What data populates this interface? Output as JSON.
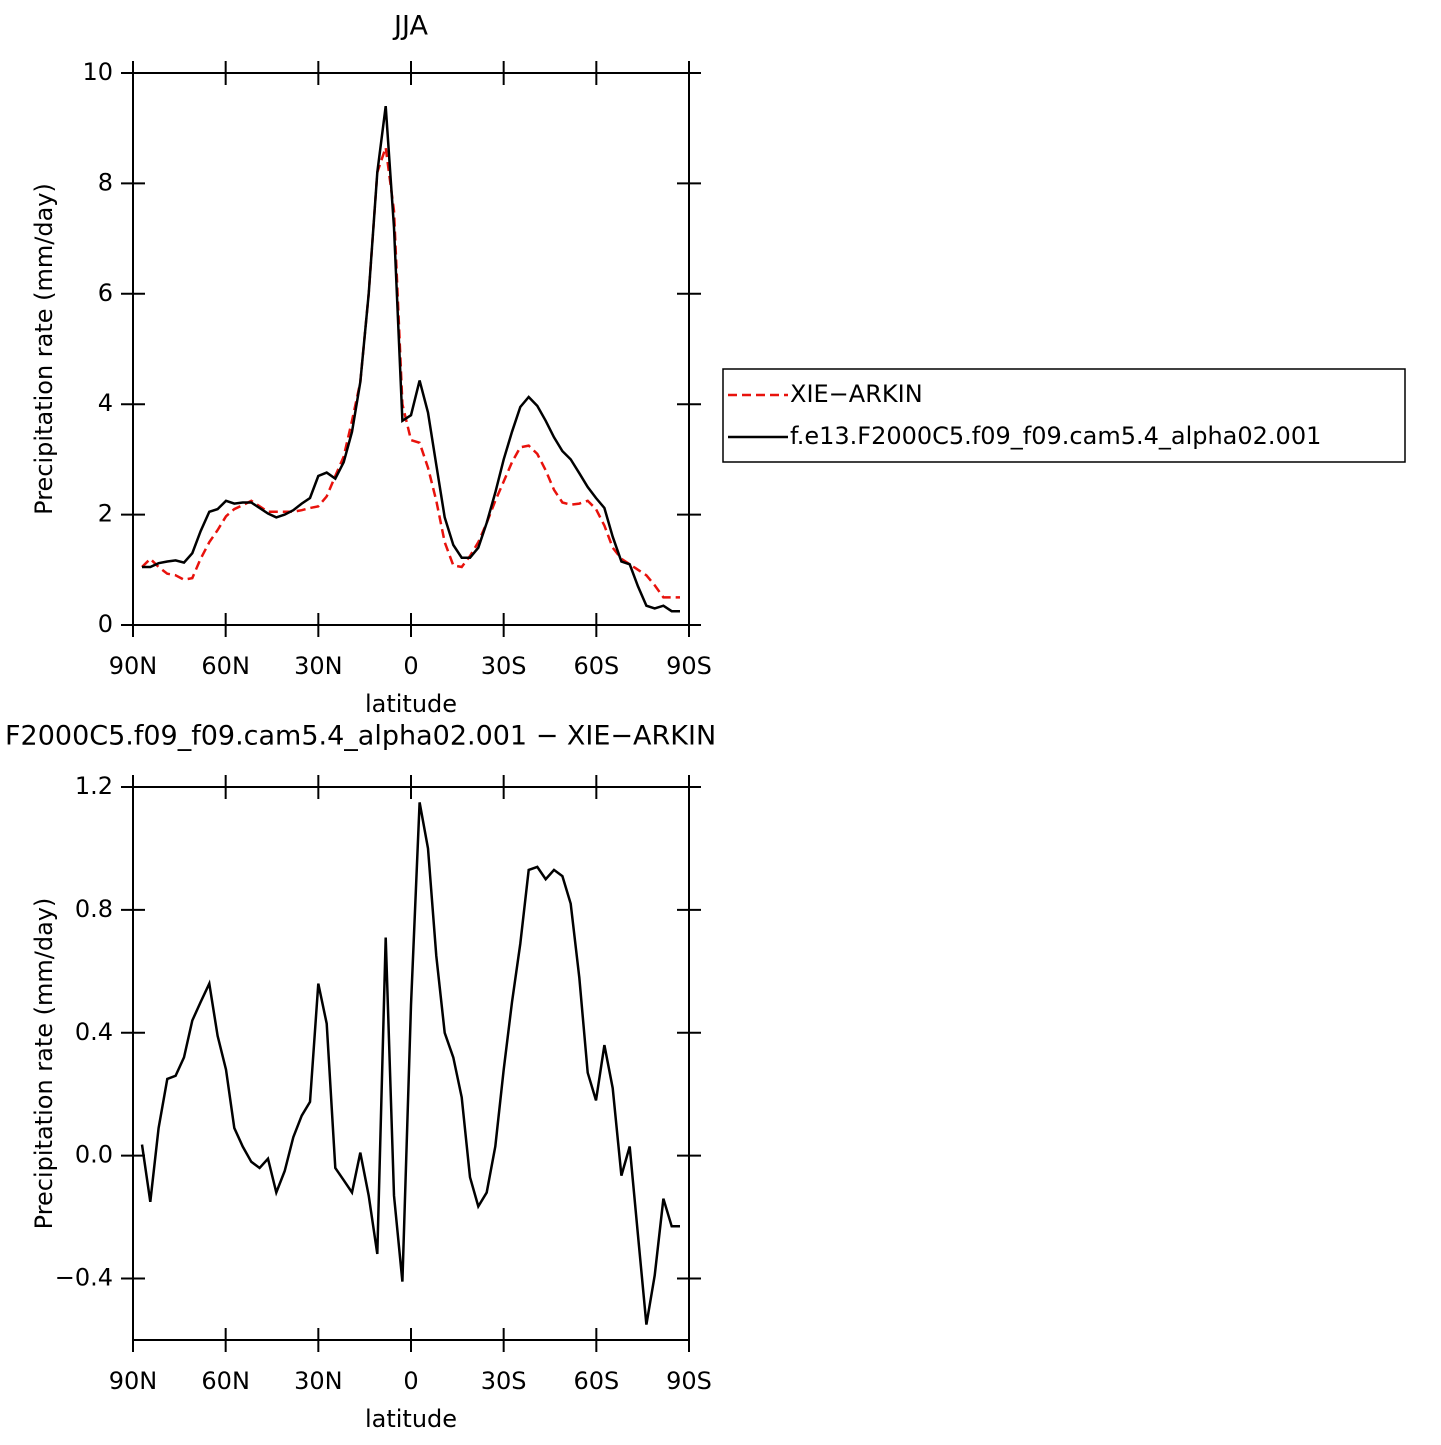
{
  "chart_data": [
    {
      "type": "line",
      "title": "JJA",
      "xlabel": "latitude",
      "ylabel": "Precipitation rate (mm/day)",
      "x": [
        87.1,
        84.4,
        81.7,
        78.9,
        76.2,
        73.5,
        70.8,
        68.1,
        65.3,
        62.6,
        59.9,
        57.2,
        54.5,
        51.7,
        49.0,
        46.3,
        43.6,
        40.9,
        38.1,
        35.4,
        32.7,
        30.0,
        27.3,
        24.5,
        21.8,
        19.1,
        16.4,
        13.7,
        10.9,
        8.2,
        5.5,
        2.8,
        0.0,
        -2.8,
        -5.5,
        -8.2,
        -10.9,
        -13.7,
        -16.4,
        -19.1,
        -21.8,
        -24.5,
        -27.3,
        -30.0,
        -32.7,
        -35.4,
        -38.1,
        -40.9,
        -43.6,
        -46.3,
        -49.0,
        -51.7,
        -54.5,
        -57.2,
        -59.9,
        -62.6,
        -65.3,
        -68.1,
        -70.8,
        -73.5,
        -76.2,
        -78.9,
        -81.7,
        -84.4,
        -87.1
      ],
      "series": [
        {
          "name": "XIE−ARKIN",
          "color": "#e8120c",
          "style": "dashed",
          "values": [
            1.05,
            1.2,
            1.05,
            0.93,
            0.9,
            0.82,
            0.85,
            1.2,
            1.5,
            1.72,
            1.97,
            2.1,
            2.17,
            2.25,
            2.15,
            2.05,
            2.05,
            2.05,
            2.05,
            2.08,
            2.12,
            2.15,
            2.33,
            2.7,
            3.05,
            3.7,
            4.4,
            6.0,
            8.2,
            8.65,
            7.5,
            4.0,
            3.35,
            3.3,
            2.85,
            2.25,
            1.5,
            1.08,
            1.05,
            1.25,
            1.5,
            1.85,
            2.25,
            2.6,
            2.95,
            3.22,
            3.25,
            3.1,
            2.8,
            2.45,
            2.22,
            2.18,
            2.2,
            2.25,
            2.1,
            1.8,
            1.4,
            1.2,
            1.1,
            1.0,
            0.9,
            0.72,
            0.5,
            0.5,
            0.5
          ]
        },
        {
          "name": "f.e13.F2000C5.f09_f09.cam5.4_alpha02.001",
          "color": "#000000",
          "style": "solid",
          "values": [
            1.05,
            1.05,
            1.12,
            1.15,
            1.17,
            1.13,
            1.3,
            1.7,
            2.05,
            2.1,
            2.25,
            2.2,
            2.22,
            2.22,
            2.12,
            2.02,
            1.95,
            2.0,
            2.08,
            2.2,
            2.3,
            2.7,
            2.76,
            2.65,
            2.95,
            3.5,
            4.4,
            6.0,
            8.2,
            9.4,
            7.2,
            3.7,
            3.8,
            4.43,
            3.85,
            2.9,
            1.95,
            1.45,
            1.22,
            1.22,
            1.4,
            1.85,
            2.4,
            3.0,
            3.5,
            3.95,
            4.13,
            3.97,
            3.7,
            3.4,
            3.15,
            3.0,
            2.75,
            2.5,
            2.3,
            2.12,
            1.6,
            1.15,
            1.1,
            0.7,
            0.35,
            0.3,
            0.35,
            0.25,
            0.25
          ]
        }
      ],
      "xlim": [
        90,
        -90
      ],
      "ylim": [
        0,
        10
      ],
      "xticks": [
        {
          "value": 90,
          "label": "90N"
        },
        {
          "value": 60,
          "label": "60N"
        },
        {
          "value": 30,
          "label": "30N"
        },
        0,
        {
          "value": -30,
          "label": "30S"
        },
        {
          "value": -60,
          "label": "60S"
        },
        {
          "value": -90,
          "label": "90S"
        }
      ],
      "yticks": [
        0,
        2,
        4,
        6,
        8,
        10
      ],
      "legend": "right"
    },
    {
      "type": "line",
      "title": "F2000C5.f09_f09.cam5.4_alpha02.001  −  XIE−ARKIN",
      "xlabel": "latitude",
      "ylabel": "Precipitation rate (mm/day)",
      "x": [
        87.1,
        84.4,
        81.7,
        78.9,
        76.2,
        73.5,
        70.8,
        68.1,
        65.3,
        62.6,
        59.9,
        57.2,
        54.5,
        51.7,
        49.0,
        46.3,
        43.6,
        40.9,
        38.1,
        35.4,
        32.7,
        30.0,
        27.3,
        24.5,
        21.8,
        19.1,
        16.4,
        13.7,
        10.9,
        8.2,
        5.5,
        2.8,
        0.0,
        -2.8,
        -5.5,
        -8.2,
        -10.9,
        -13.7,
        -16.4,
        -19.1,
        -21.8,
        -24.5,
        -27.3,
        -30.0,
        -32.7,
        -35.4,
        -38.1,
        -40.9,
        -43.6,
        -46.3,
        -49.0,
        -51.7,
        -54.5,
        -57.2,
        -59.9,
        -62.6,
        -65.3,
        -68.1,
        -70.8,
        -73.5,
        -76.2,
        -78.9,
        -81.7,
        -84.4,
        -87.1
      ],
      "series": [
        {
          "color": "#000000",
          "style": "solid",
          "values": [
            0.036,
            -0.15,
            0.09,
            0.25,
            0.26,
            0.32,
            0.44,
            0.5,
            0.56,
            0.39,
            0.28,
            0.09,
            0.03,
            -0.02,
            -0.04,
            -0.01,
            -0.12,
            -0.05,
            0.06,
            0.13,
            0.175,
            0.56,
            0.43,
            -0.04,
            -0.08,
            -0.12,
            0.01,
            -0.13,
            -0.32,
            0.71,
            -0.13,
            -0.41,
            0.49,
            1.15,
            1.0,
            0.65,
            0.4,
            0.32,
            0.19,
            -0.07,
            -0.165,
            -0.12,
            0.03,
            0.28,
            0.5,
            0.69,
            0.93,
            0.94,
            0.9,
            0.93,
            0.91,
            0.82,
            0.58,
            0.27,
            0.18,
            0.36,
            0.22,
            -0.065,
            0.03,
            -0.26,
            -0.55,
            -0.39,
            -0.14,
            -0.23,
            -0.23
          ]
        }
      ],
      "xlim": [
        90,
        -90
      ],
      "ylim": [
        -0.6,
        1.2
      ],
      "xticks": [
        {
          "value": 90,
          "label": "90N"
        },
        {
          "value": 60,
          "label": "60N"
        },
        {
          "value": 30,
          "label": "30N"
        },
        0,
        {
          "value": -30,
          "label": "30S"
        },
        {
          "value": -60,
          "label": "60S"
        },
        {
          "value": -90,
          "label": "90S"
        }
      ],
      "yticks": [
        {
          "value": -0.4,
          "label": "−0.4"
        },
        {
          "value": 0,
          "label": "0.0"
        },
        0.4,
        0.8,
        1.2
      ]
    }
  ]
}
